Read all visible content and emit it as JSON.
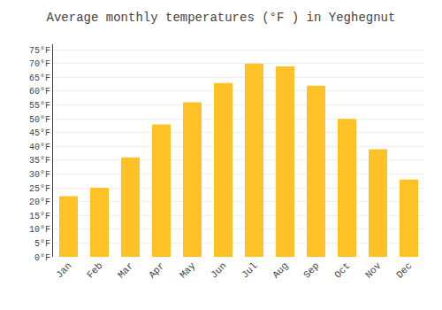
{
  "chart_data": {
    "type": "bar",
    "title": "Average monthly temperatures (°F ) in Yeghegnut",
    "categories": [
      "Jan",
      "Feb",
      "Mar",
      "Apr",
      "May",
      "Jun",
      "Jul",
      "Aug",
      "Sep",
      "Oct",
      "Nov",
      "Dec"
    ],
    "values": [
      22,
      25,
      36,
      48,
      56,
      63,
      70,
      69,
      62,
      50,
      39,
      28
    ],
    "color": "#FFC125",
    "ylim": [
      0,
      77
    ],
    "yticks": [
      {
        "value": 0,
        "label": "0°F"
      },
      {
        "value": 5,
        "label": "5°F"
      },
      {
        "value": 10,
        "label": "10°F"
      },
      {
        "value": 15,
        "label": "15°F"
      },
      {
        "value": 20,
        "label": "20°F"
      },
      {
        "value": 25,
        "label": "25°F"
      },
      {
        "value": 30,
        "label": "30°F"
      },
      {
        "value": 35,
        "label": "35°F"
      },
      {
        "value": 40,
        "label": "40°F"
      },
      {
        "value": 45,
        "label": "45°F"
      },
      {
        "value": 50,
        "label": "50°F"
      },
      {
        "value": 55,
        "label": "55°F"
      },
      {
        "value": 60,
        "label": "60°F"
      },
      {
        "value": 65,
        "label": "65°F"
      },
      {
        "value": 70,
        "label": "70°F"
      },
      {
        "value": 75,
        "label": "75°F"
      }
    ],
    "grid": true
  }
}
